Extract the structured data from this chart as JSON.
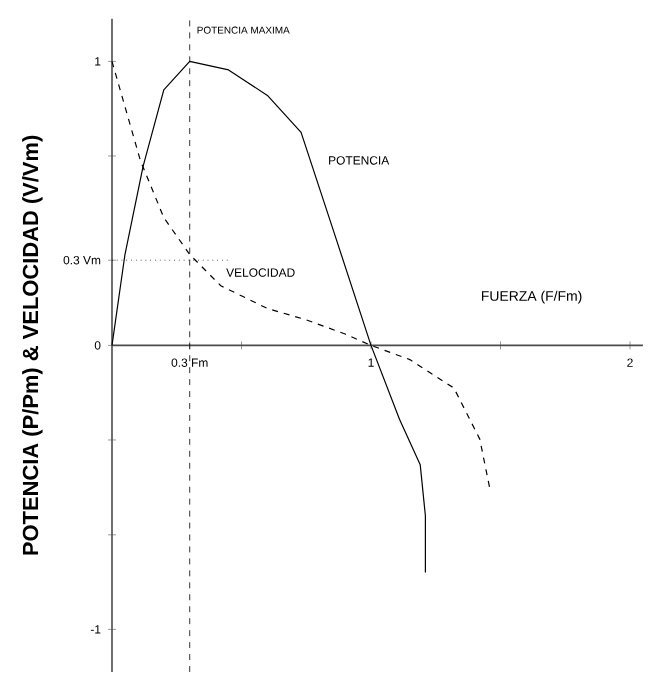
{
  "chart_data": {
    "type": "line",
    "xlabel": "FUERZA (F/Fm)",
    "ylabel": "POTENCIA (P/Pm) & VELOCIDAD (V/Vm)",
    "xlim": [
      0,
      2.05
    ],
    "ylim": [
      -1.15,
      1.15
    ],
    "xticks": [
      {
        "value": 0.3,
        "label": "0.3 Fm"
      },
      {
        "value": 0.5,
        "label": null
      },
      1,
      {
        "value": 1.5,
        "label": null
      },
      2
    ],
    "yticks": [
      -1,
      {
        "value": -0.667,
        "label": null
      },
      {
        "value": -0.333,
        "label": null
      },
      0,
      {
        "value": 0.3,
        "label": "0.3 Vm"
      },
      {
        "value": 0.667,
        "label": null
      },
      1
    ],
    "series": [
      {
        "name": "POTENCIA",
        "color": "#000000",
        "line_style": "solid",
        "x": [
          0,
          0.05,
          0.12,
          0.2,
          0.3,
          0.45,
          0.6,
          0.73,
          0.86,
          1,
          1.11,
          1.19,
          1.21,
          1.21
        ],
        "values": [
          0,
          0.32,
          0.63,
          0.9,
          1,
          0.97,
          0.88,
          0.75,
          0.39,
          0,
          -0.26,
          -0.42,
          -0.6,
          -0.8
        ]
      },
      {
        "name": "VELOCIDAD",
        "color": "#000000",
        "line_style": "dashed",
        "x": [
          0,
          0.11,
          0.2,
          0.3,
          0.42,
          0.6,
          0.75,
          0.9,
          1,
          1.15,
          1.32,
          1.42,
          1.46
        ],
        "values": [
          1,
          0.65,
          0.45,
          0.32,
          0.21,
          0.13,
          0.09,
          0.04,
          0,
          -0.05,
          -0.15,
          -0.33,
          -0.51
        ]
      }
    ],
    "ref_lines": [
      {
        "axis": "x",
        "value": 0.3,
        "label": "POTENCIA MAXIMA",
        "line_style": "dashed"
      },
      {
        "axis": "y",
        "value": 0.3,
        "label": null,
        "line_style": "dotted"
      }
    ],
    "grid": false
  }
}
